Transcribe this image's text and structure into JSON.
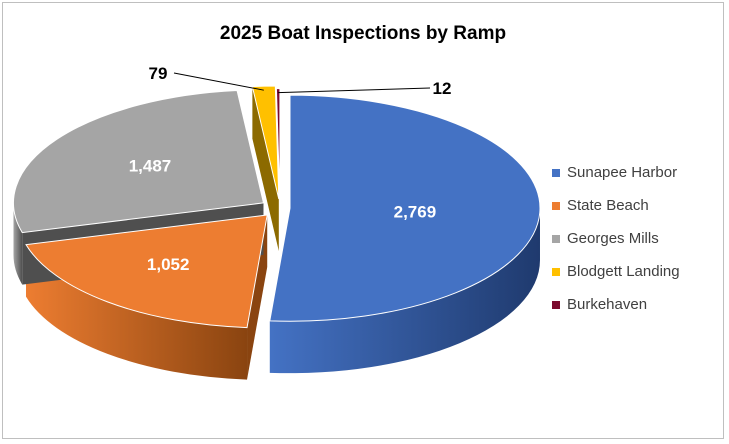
{
  "chart_data": {
    "type": "pie",
    "title": "2025 Boat Inspections by Ramp",
    "legend_position": "right",
    "slices": [
      {
        "name": "Sunapee Harbor",
        "value": 2769,
        "label": "2,769",
        "color": "#4472C4",
        "side": "#1F3A6E"
      },
      {
        "name": "State Beach",
        "value": 1052,
        "label": "1,052",
        "color": "#ED7D31",
        "side": "#8A4410"
      },
      {
        "name": "Georges Mills",
        "value": 1487,
        "label": "1,487",
        "color": "#A5A5A5",
        "side": "#4F4F4F"
      },
      {
        "name": "Blodgett Landing",
        "value": 79,
        "label": "79",
        "color": "#FFC000",
        "side": "#8C6A00"
      },
      {
        "name": "Burkehaven",
        "value": 12,
        "label": "12",
        "color": "#7B0A2E",
        "side": "#3C0416"
      }
    ]
  }
}
